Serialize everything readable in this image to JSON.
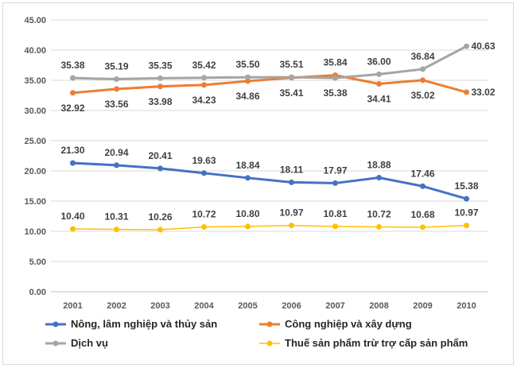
{
  "chart_data": {
    "type": "line",
    "title": "",
    "xlabel": "",
    "ylabel": "",
    "x": [
      "2001",
      "2002",
      "2003",
      "2004",
      "2005",
      "2006",
      "2007",
      "2008",
      "2009",
      "2010"
    ],
    "ylim": [
      0,
      45
    ],
    "y_ticks": [
      "0.00",
      "5.00",
      "10.00",
      "15.00",
      "20.00",
      "25.00",
      "30.00",
      "35.00",
      "40.00",
      "45.00"
    ],
    "grid": true,
    "legend_position": "bottom",
    "series": [
      {
        "name": "Nông, lâm nghiệp và thủy sản",
        "color": "#4472C4",
        "values": [
          21.3,
          20.94,
          20.41,
          19.63,
          18.84,
          18.11,
          17.97,
          18.88,
          17.46,
          15.38
        ],
        "labels": [
          "21.30",
          "20.94",
          "20.41",
          "19.63",
          "18.84",
          "18.11",
          "17.97",
          "18.88",
          "17.46",
          "15.38"
        ]
      },
      {
        "name": "Công nghiệp và xây dựng",
        "color": "#ED7D31",
        "values": [
          32.92,
          33.56,
          33.98,
          34.23,
          34.86,
          35.41,
          35.84,
          34.41,
          35.02,
          33.02
        ],
        "labels": [
          "32.92",
          "33.56",
          "33.98",
          "34.23",
          "34.86",
          "35.41",
          "35.84",
          "34.41",
          "35.02",
          "33.02"
        ]
      },
      {
        "name": "Dịch vụ",
        "color": "#A5A5A5",
        "values": [
          35.38,
          35.19,
          35.35,
          35.42,
          35.5,
          35.51,
          35.38,
          36.0,
          36.84,
          40.63
        ],
        "labels": [
          "35.38",
          "35.19",
          "35.35",
          "35.42",
          "35.50",
          "35.51",
          "35.38",
          "36.00",
          "36.84",
          "40.63"
        ]
      },
      {
        "name": "Thuế sản phẩm trừ trợ cấp sản phẩm",
        "color": "#FFC000",
        "values": [
          10.4,
          10.31,
          10.26,
          10.72,
          10.8,
          10.97,
          10.81,
          10.72,
          10.68,
          10.97
        ],
        "labels": [
          "10.40",
          "10.31",
          "10.26",
          "10.72",
          "10.80",
          "10.97",
          "10.81",
          "10.72",
          "10.68",
          "10.97"
        ]
      }
    ]
  }
}
